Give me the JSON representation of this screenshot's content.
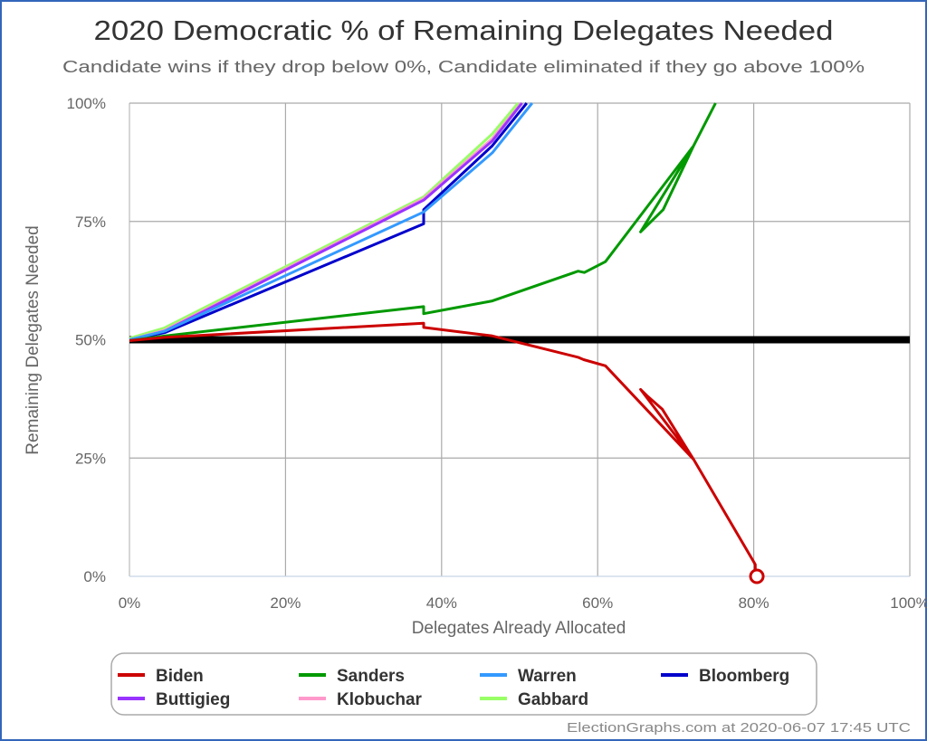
{
  "chart_data": {
    "type": "line",
    "title": "2020 Democratic % of Remaining Delegates Needed",
    "subtitle": "Candidate wins if they drop below 0%, Candidate eliminated if they go above 100%",
    "xlabel": "Delegates Already Allocated",
    "ylabel": "Remaining Delegates Needed",
    "xlim": [
      0,
      100
    ],
    "ylim": [
      0,
      100
    ],
    "x_ticks": [
      "0%",
      "20%",
      "40%",
      "60%",
      "80%",
      "100%"
    ],
    "y_ticks": [
      "0%",
      "25%",
      "50%",
      "75%",
      "100%"
    ],
    "grid": true,
    "reference_line_y": 50,
    "reference_line_color": "#000000",
    "legend_placement": "bottom",
    "series": [
      {
        "name": "Biden",
        "color": "#cc0000",
        "x": [
          0,
          4.5,
          37.7,
          37.7,
          46.5,
          57.5,
          58.2,
          61,
          72.3,
          65.5,
          66.3,
          68.3,
          72.3,
          80.2,
          80.2
        ],
        "y": [
          49.8,
          50.5,
          53.5,
          52.6,
          50.8,
          46.3,
          45.8,
          44.5,
          24.7,
          39.5,
          38.2,
          35.3,
          24.7,
          2.5,
          0
        ],
        "end_marker": {
          "x": 80.4,
          "y": 0,
          "shape": "open-circle"
        }
      },
      {
        "name": "Sanders",
        "color": "#009900",
        "x": [
          0,
          4.5,
          37.7,
          37.7,
          46.5,
          57.5,
          58.3,
          61,
          72.3,
          65.5,
          68.4,
          72.3,
          75.1
        ],
        "y": [
          49.8,
          50.8,
          57,
          55.5,
          58.2,
          64.5,
          64.2,
          66.5,
          91,
          72.8,
          77.5,
          91,
          100
        ]
      },
      {
        "name": "Warren",
        "color": "#3399ff",
        "x": [
          0,
          4.5,
          37.7,
          46.5,
          51.6
        ],
        "y": [
          50,
          51.8,
          77,
          89.5,
          100
        ]
      },
      {
        "name": "Bloomberg",
        "color": "#0000cc",
        "x": [
          0,
          4.5,
          37.7,
          37.7,
          46.5,
          50.9
        ],
        "y": [
          50,
          51.5,
          74.5,
          77.5,
          91,
          100
        ]
      },
      {
        "name": "Buttigieg",
        "color": "#9933ff",
        "x": [
          0,
          4.5,
          37.7,
          46.5,
          50.3
        ],
        "y": [
          49.8,
          51.8,
          79.5,
          92,
          100
        ]
      },
      {
        "name": "Klobuchar",
        "color": "#ff99cc",
        "x": [
          0,
          4.5,
          37.7,
          46.5,
          50.2
        ],
        "y": [
          50,
          52,
          79.8,
          92.5,
          100
        ]
      },
      {
        "name": "Gabbard",
        "color": "#99ff66",
        "x": [
          0,
          4.5,
          37.7,
          46.5,
          49.8
        ],
        "y": [
          50.3,
          52.5,
          80.2,
          93.5,
          100
        ]
      }
    ]
  },
  "footer": {
    "credit": "ElectionGraphs.com at 2020-06-07 17:45 UTC"
  },
  "frame_color": "#3366bb"
}
